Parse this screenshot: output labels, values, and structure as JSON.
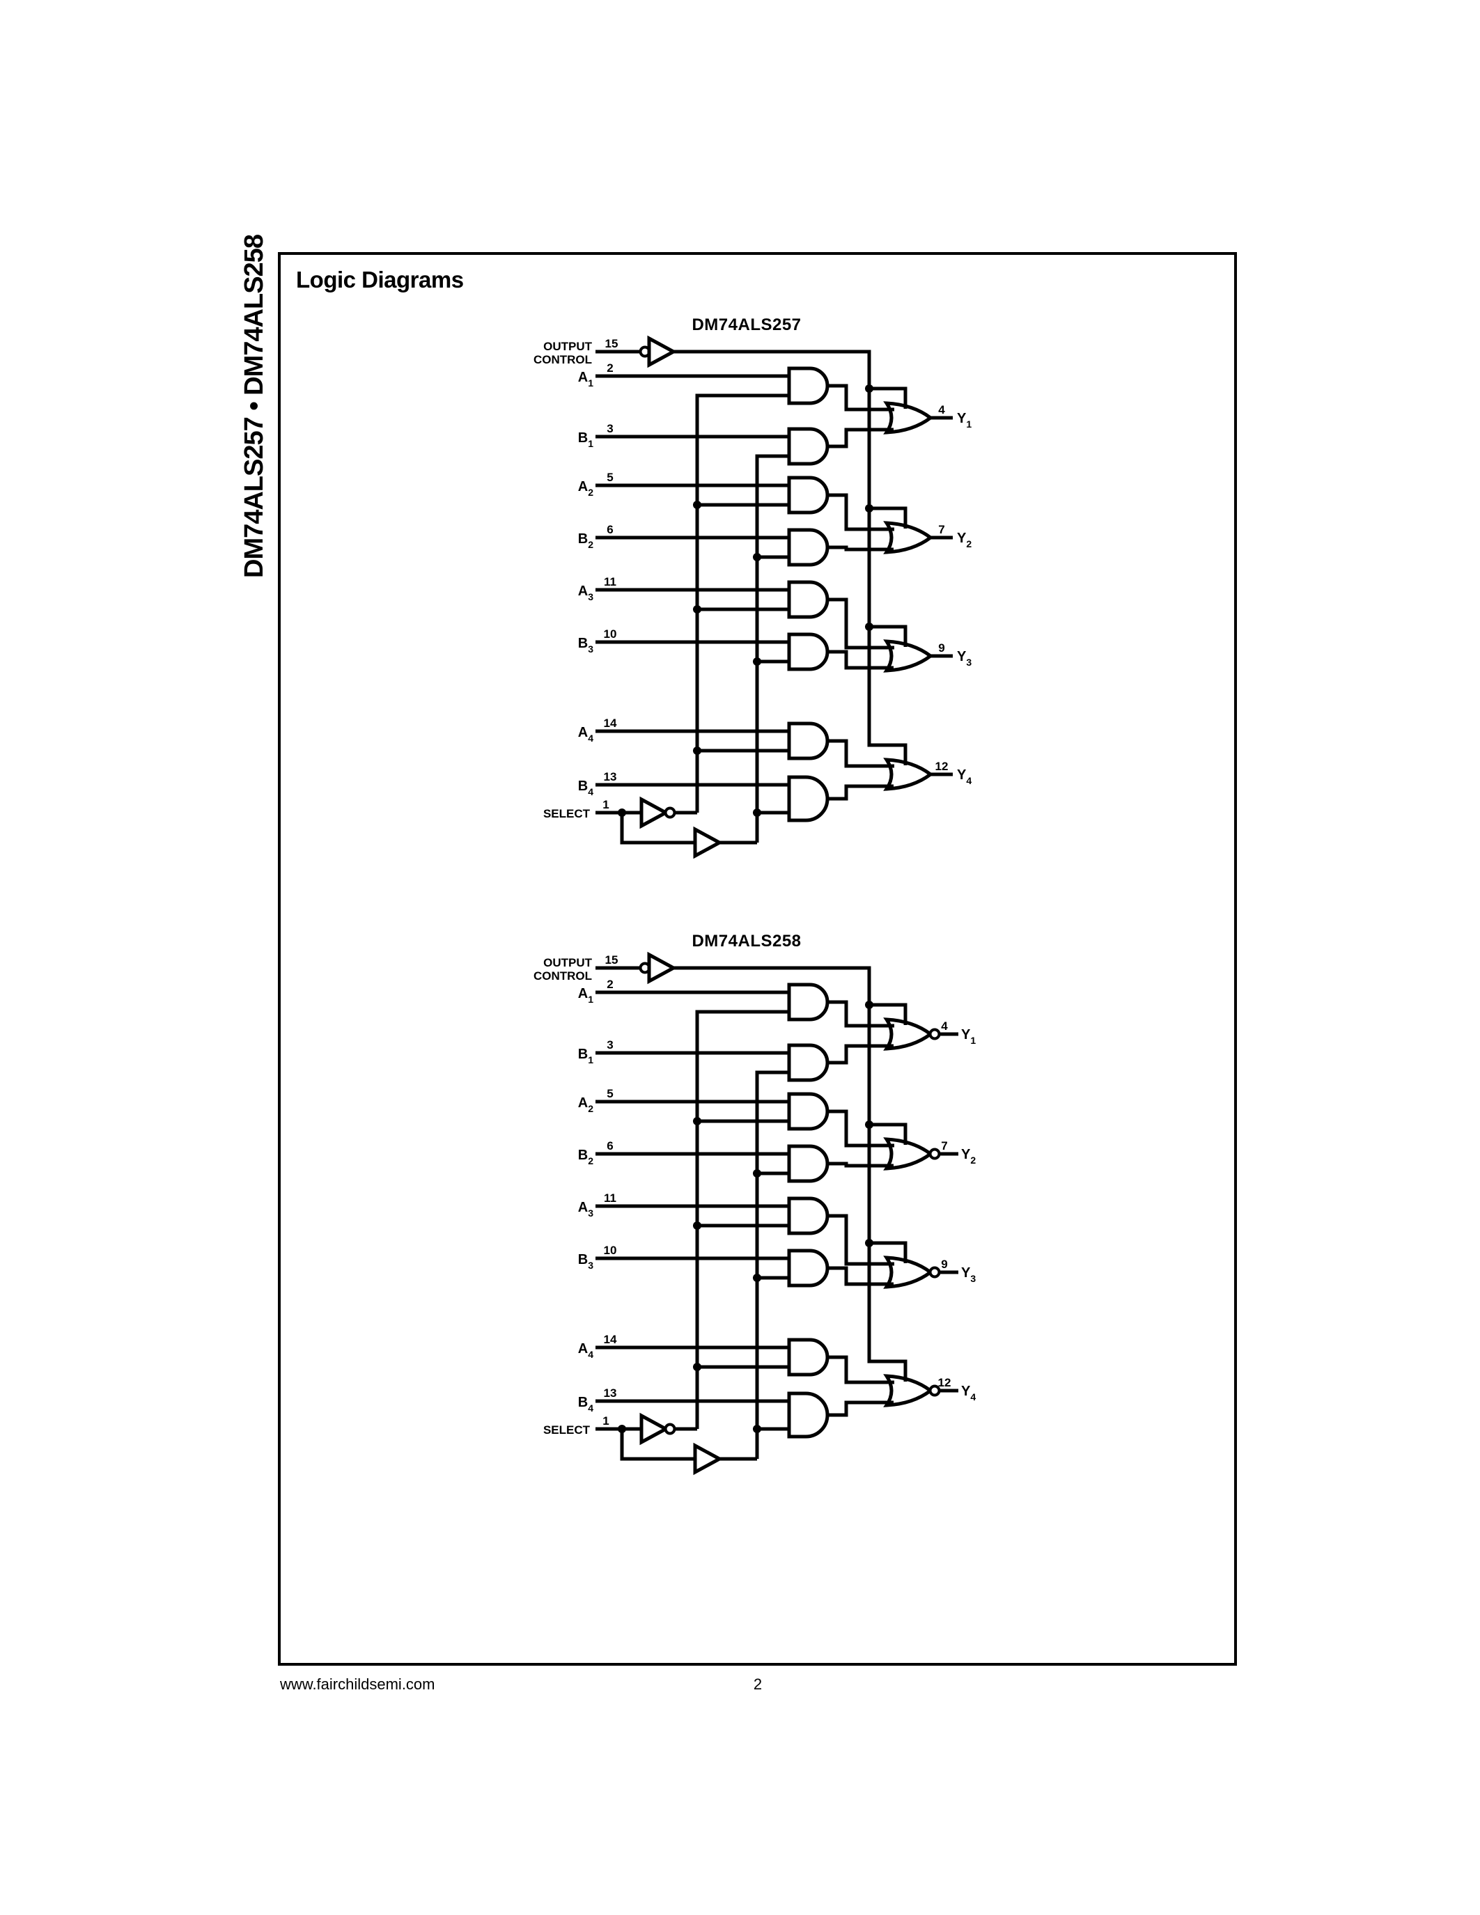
{
  "sidebar_text": "DM74ALS257 • DM74ALS258",
  "heading": "Logic Diagrams",
  "footer": {
    "url": "www.fairchildsemi.com",
    "page": "2"
  },
  "diagrams": [
    {
      "title": "DM74ALS257",
      "gate": "or",
      "output_control": {
        "label_line1": "OUTPUT",
        "label_line2": "CONTROL",
        "pin": "15"
      },
      "select": {
        "label": "SELECT",
        "pin": "1"
      },
      "channels": [
        {
          "a": {
            "name": "A",
            "sub": "1",
            "pin": "2"
          },
          "b": {
            "name": "B",
            "sub": "1",
            "pin": "3"
          },
          "y": {
            "name": "Y",
            "sub": "1",
            "pin": "4"
          }
        },
        {
          "a": {
            "name": "A",
            "sub": "2",
            "pin": "5"
          },
          "b": {
            "name": "B",
            "sub": "2",
            "pin": "6"
          },
          "y": {
            "name": "Y",
            "sub": "2",
            "pin": "7"
          }
        },
        {
          "a": {
            "name": "A",
            "sub": "3",
            "pin": "11"
          },
          "b": {
            "name": "B",
            "sub": "3",
            "pin": "10"
          },
          "y": {
            "name": "Y",
            "sub": "3",
            "pin": "9"
          }
        },
        {
          "a": {
            "name": "A",
            "sub": "4",
            "pin": "14"
          },
          "b": {
            "name": "B",
            "sub": "4",
            "pin": "13"
          },
          "y": {
            "name": "Y",
            "sub": "4",
            "pin": "12"
          }
        }
      ]
    },
    {
      "title": "DM74ALS258",
      "gate": "nor",
      "output_control": {
        "label_line1": "OUTPUT",
        "label_line2": "CONTROL",
        "pin": "15"
      },
      "select": {
        "label": "SELECT",
        "pin": "1"
      },
      "channels": [
        {
          "a": {
            "name": "A",
            "sub": "1",
            "pin": "2"
          },
          "b": {
            "name": "B",
            "sub": "1",
            "pin": "3"
          },
          "y": {
            "name": "Y",
            "sub": "1",
            "pin": "4"
          }
        },
        {
          "a": {
            "name": "A",
            "sub": "2",
            "pin": "5"
          },
          "b": {
            "name": "B",
            "sub": "2",
            "pin": "6"
          },
          "y": {
            "name": "Y",
            "sub": "2",
            "pin": "7"
          }
        },
        {
          "a": {
            "name": "A",
            "sub": "3",
            "pin": "11"
          },
          "b": {
            "name": "B",
            "sub": "3",
            "pin": "10"
          },
          "y": {
            "name": "Y",
            "sub": "3",
            "pin": "9"
          }
        },
        {
          "a": {
            "name": "A",
            "sub": "4",
            "pin": "14"
          },
          "b": {
            "name": "B",
            "sub": "4",
            "pin": "13"
          },
          "y": {
            "name": "Y",
            "sub": "4",
            "pin": "12"
          }
        }
      ]
    }
  ],
  "ink_color": "#000000",
  "paper_color": "#ffffff"
}
